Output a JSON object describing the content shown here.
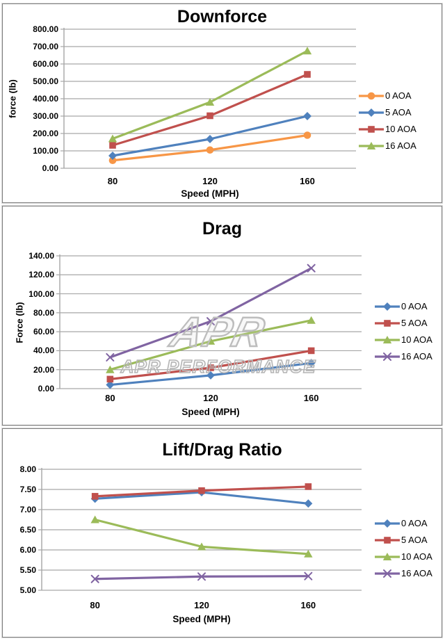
{
  "page": {
    "background": "#ffffff",
    "grid_color": "#A6A6A6",
    "text_color": "#000000"
  },
  "watermark": {
    "logo_text": "APR",
    "text": "APR PERFORMANCE"
  },
  "chart_data": [
    {
      "type": "line",
      "title": "Downforce",
      "xlabel": "Speed (MPH)",
      "ylabel": "force (lb)",
      "x_categories": [
        "80",
        "120",
        "160"
      ],
      "y_ticks": [
        "800.00",
        "700.00",
        "600.00",
        "500.00",
        "400.00",
        "300.00",
        "200.00",
        "100.00",
        "0.00"
      ],
      "ylim": [
        0,
        800
      ],
      "grid": true,
      "legend_position": "right",
      "series": [
        {
          "name": "0 AOA",
          "color": "#F79646",
          "marker": "circle",
          "values": [
            45,
            105,
            190
          ]
        },
        {
          "name": "5 AOA",
          "color": "#4F81BD",
          "marker": "diamond",
          "values": [
            72,
            168,
            300
          ]
        },
        {
          "name": "10 AOA",
          "color": "#C0504D",
          "marker": "square",
          "values": [
            132,
            302,
            540
          ]
        },
        {
          "name": "16 AOA",
          "color": "#9BBB59",
          "marker": "triangle",
          "values": [
            170,
            380,
            675
          ]
        }
      ]
    },
    {
      "type": "line",
      "title": "Drag",
      "xlabel": "Speed (MPH)",
      "ylabel": "Force (lb)",
      "x_categories": [
        "80",
        "120",
        "160"
      ],
      "y_ticks": [
        "140.00",
        "120.00",
        "100.00",
        "80.00",
        "60.00",
        "40.00",
        "20.00",
        "0.00"
      ],
      "ylim": [
        0,
        140
      ],
      "grid": true,
      "legend_position": "right",
      "series": [
        {
          "name": "0 AOA",
          "color": "#4F81BD",
          "marker": "diamond",
          "values": [
            4,
            14,
            27
          ]
        },
        {
          "name": "5 AOA",
          "color": "#C0504D",
          "marker": "square",
          "values": [
            10,
            22,
            40
          ]
        },
        {
          "name": "10 AOA",
          "color": "#9BBB59",
          "marker": "triangle",
          "values": [
            20,
            50,
            72
          ]
        },
        {
          "name": "16 AOA",
          "color": "#8064A2",
          "marker": "x",
          "values": [
            33,
            71,
            127
          ]
        }
      ]
    },
    {
      "type": "line",
      "title": "Lift/Drag Ratio",
      "xlabel": "Speed (MPH)",
      "ylabel": "",
      "x_categories": [
        "80",
        "120",
        "160"
      ],
      "y_ticks": [
        "8.00",
        "7.50",
        "7.00",
        "6.50",
        "6.00",
        "5.50",
        "5.00"
      ],
      "ylim": [
        5,
        8
      ],
      "grid": true,
      "legend_position": "right",
      "series": [
        {
          "name": "0 AOA",
          "color": "#4F81BD",
          "marker": "diamond",
          "values": [
            7.27,
            7.43,
            7.15
          ]
        },
        {
          "name": "5 AOA",
          "color": "#C0504D",
          "marker": "square",
          "values": [
            7.33,
            7.47,
            7.57
          ]
        },
        {
          "name": "10 AOA",
          "color": "#9BBB59",
          "marker": "triangle",
          "values": [
            6.75,
            6.08,
            5.9
          ]
        },
        {
          "name": "16 AOA",
          "color": "#8064A2",
          "marker": "x",
          "values": [
            5.28,
            5.34,
            5.35
          ]
        }
      ]
    }
  ]
}
